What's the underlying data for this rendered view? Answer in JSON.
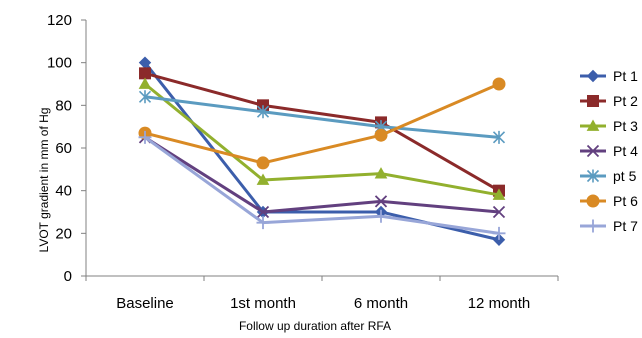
{
  "chart_data": {
    "type": "line",
    "categories": [
      "Baseline",
      "1st month",
      "6 month",
      "12 month"
    ],
    "xlabel": "Follow up  duration after  RFA",
    "ylabel": "LVOT gradient in mm of Hg",
    "ylim": [
      0,
      120
    ],
    "yticks": [
      0,
      20,
      40,
      60,
      80,
      100,
      120
    ],
    "grid": false,
    "legend_position": "right",
    "series": [
      {
        "name": "Pt 1",
        "color": "#3c5eab",
        "marker": "diamond",
        "values": [
          100,
          30,
          30,
          17
        ]
      },
      {
        "name": "Pt 2",
        "color": "#8b2a2a",
        "marker": "square",
        "values": [
          95,
          80,
          72,
          40
        ]
      },
      {
        "name": "Pt 3",
        "color": "#92b02e",
        "marker": "triangle",
        "values": [
          90,
          45,
          48,
          38
        ]
      },
      {
        "name": "Pt 4",
        "color": "#62407f",
        "marker": "x",
        "values": [
          65,
          30,
          35,
          30
        ]
      },
      {
        "name": "pt 5",
        "color": "#5b9bc0",
        "marker": "asterisk",
        "values": [
          84,
          77,
          70,
          65
        ]
      },
      {
        "name": "Pt 6",
        "color": "#d98a24",
        "marker": "circle",
        "values": [
          67,
          53,
          66,
          90
        ]
      },
      {
        "name": "Pt 7",
        "color": "#98a6d8",
        "marker": "plus",
        "values": [
          65,
          25,
          28,
          20
        ]
      }
    ]
  }
}
